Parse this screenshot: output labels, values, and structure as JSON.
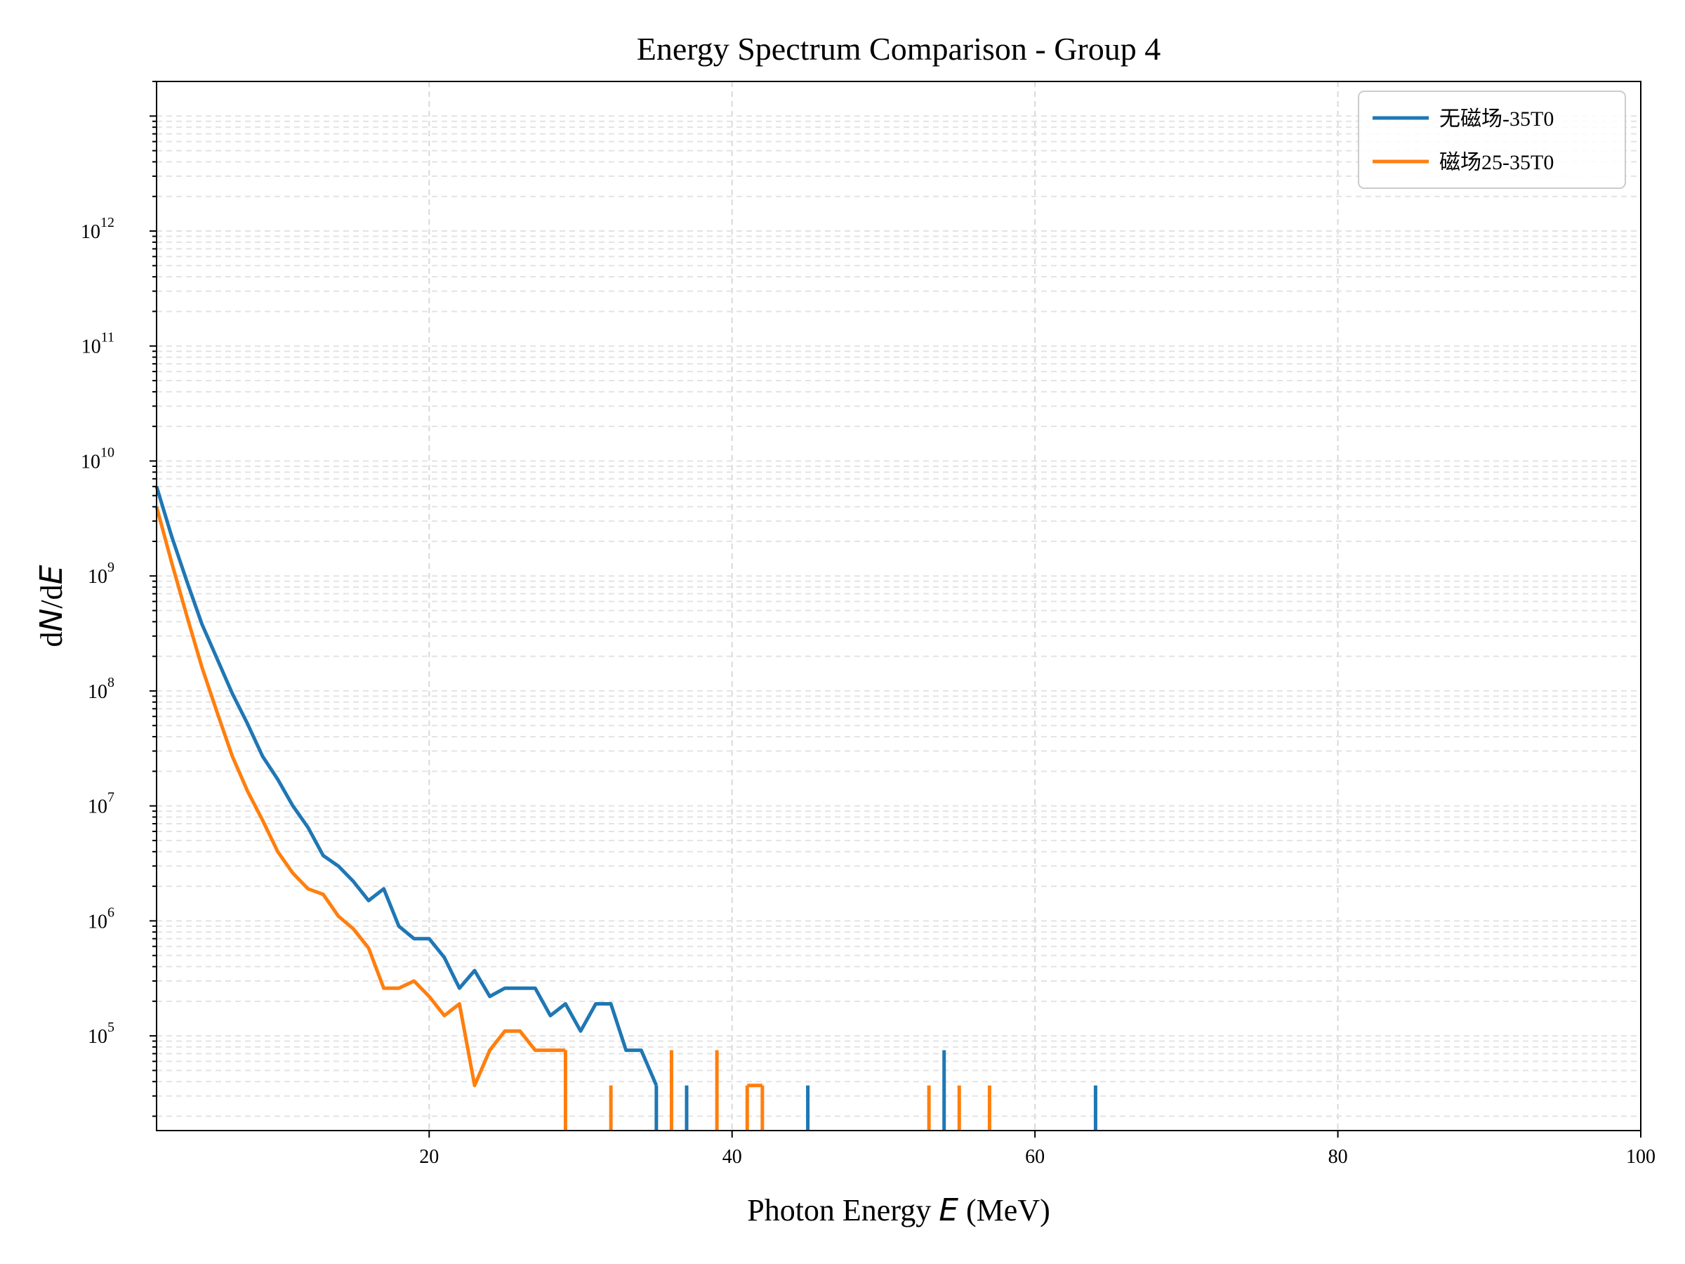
{
  "chart_data": {
    "type": "line",
    "title": "Energy Spectrum Comparison - Group 4",
    "xlabel": "Photon Energy $E$ (MeV)",
    "xlabel_parts": [
      "Photon Energy ",
      "E",
      " (MeV)"
    ],
    "ylabel": "dN/dE",
    "ylabel_parts": [
      "d",
      "N",
      "/d",
      "E"
    ],
    "xlim": [
      2,
      100
    ],
    "ylim": [
      15000,
      20000000000000
    ],
    "yscale": "log",
    "grid": true,
    "legend_position": "top-right",
    "x_ticks": [
      20,
      40,
      60,
      80,
      100
    ],
    "x_tick_labels": [
      "20",
      "40",
      "60",
      "80",
      "100"
    ],
    "y_ticks": [
      {
        "exp": 5,
        "base": "10",
        "sup": "5"
      },
      {
        "exp": 6,
        "base": "10",
        "sup": "6"
      },
      {
        "exp": 7,
        "base": "10",
        "sup": "7"
      },
      {
        "exp": 8,
        "base": "10",
        "sup": "8"
      },
      {
        "exp": 9,
        "base": "10",
        "sup": "9"
      },
      {
        "exp": 10,
        "base": "10",
        "sup": "10"
      },
      {
        "exp": 11,
        "base": "10",
        "sup": "11"
      },
      {
        "exp": 12,
        "base": "10",
        "sup": "12"
      }
    ],
    "series": [
      {
        "name": "无磁场-35T0",
        "color": "#1f77b4",
        "segments": [
          {
            "x": [
              2,
              3,
              4,
              5,
              6,
              7,
              8,
              9,
              10,
              11,
              12,
              13,
              14,
              15,
              16,
              17,
              18,
              19,
              20,
              21,
              22,
              23,
              24,
              25,
              26,
              27,
              28,
              29,
              30,
              31,
              32,
              33,
              34,
              35
            ],
            "y": [
              6000000000,
              2200000000,
              900000000,
              380000000,
              190000000,
              95000000,
              52000000,
              27000000,
              17000000,
              10000000,
              6500000,
              3700000,
              3000000,
              2200000,
              1500000,
              1900000,
              900000,
              700000,
              700000,
              480000,
              260000,
              370000,
              220000,
              260000,
              260000,
              260000,
              150000,
              190000,
              110000,
              190000,
              190000,
              75000,
              75000,
              37000
            ]
          },
          {
            "x": [
              37
            ],
            "y": [
              37000
            ]
          },
          {
            "x": [
              45
            ],
            "y": [
              37000
            ]
          },
          {
            "x": [
              54
            ],
            "y": [
              75000
            ]
          },
          {
            "x": [
              64
            ],
            "y": [
              37000
            ]
          }
        ]
      },
      {
        "name": "磁场25-35T0",
        "color": "#ff7f0e",
        "segments": [
          {
            "x": [
              2,
              3,
              4,
              5,
              6,
              7,
              8,
              9,
              10,
              11,
              12,
              13,
              14,
              15,
              16,
              17,
              18,
              19,
              20,
              21,
              22,
              23,
              24,
              25,
              26,
              27,
              28,
              29
            ],
            "y": [
              4000000000,
              1300000000,
              450000000,
              160000000,
              65000000,
              27000000,
              13500000,
              7500000,
              4000000,
              2600000,
              1900000,
              1700000,
              1100000,
              850000,
              580000,
              260000,
              260000,
              300000,
              220000,
              150000,
              190000,
              37000,
              75000,
              110000,
              110000,
              75000,
              75000,
              75000
            ]
          },
          {
            "x": [
              32
            ],
            "y": [
              37000
            ]
          },
          {
            "x": [
              36
            ],
            "y": [
              75000
            ]
          },
          {
            "x": [
              39
            ],
            "y": [
              75000
            ]
          },
          {
            "x": [
              41,
              42
            ],
            "y": [
              37000,
              37000
            ]
          },
          {
            "x": [
              53
            ],
            "y": [
              37000
            ]
          },
          {
            "x": [
              55
            ],
            "y": [
              37000
            ]
          },
          {
            "x": [
              57
            ],
            "y": [
              37000
            ]
          }
        ]
      }
    ]
  }
}
